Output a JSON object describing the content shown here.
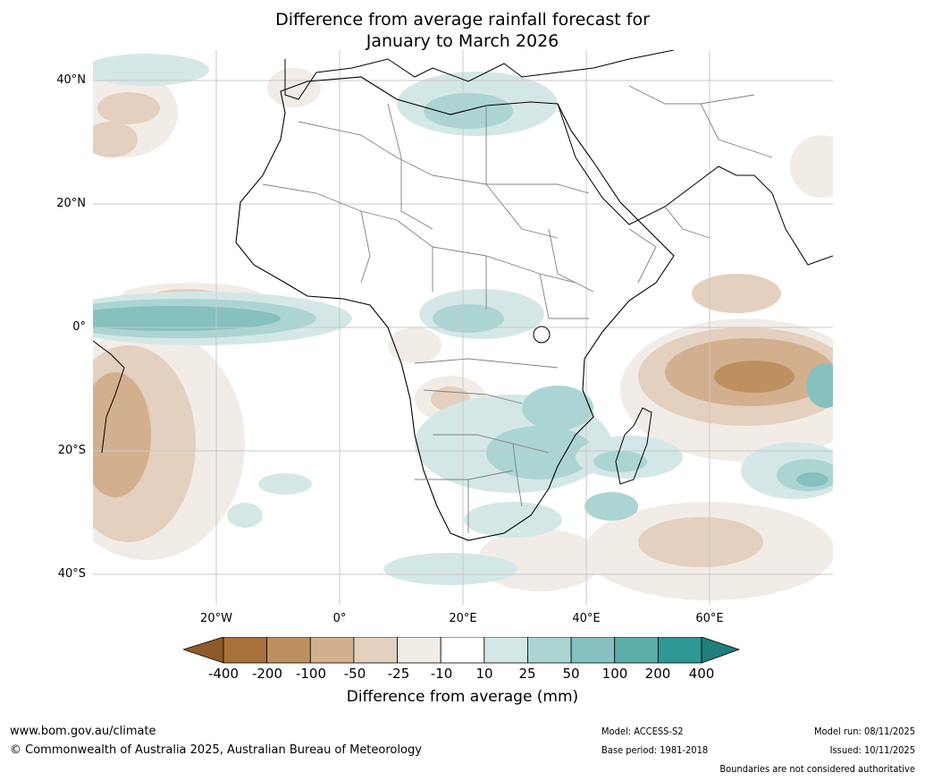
{
  "title": {
    "line1": "Difference from average rainfall forecast for",
    "line2": "January to March 2026"
  },
  "axes": {
    "y_labels": [
      "40°N",
      "20°N",
      "0°",
      "20°S",
      "40°S"
    ],
    "x_labels": [
      "20°W",
      "0°",
      "20°E",
      "40°E",
      "60°E"
    ]
  },
  "colorbar": {
    "tick_labels": [
      "-400",
      "-200",
      "-100",
      "-50",
      "-25",
      "-10",
      "10",
      "25",
      "50",
      "100",
      "200",
      "400"
    ],
    "colors": [
      "#a8703a",
      "#bd915f",
      "#d2b08e",
      "#e3d0bf",
      "#f2ece6",
      "#ffffff",
      "#d3e8e6",
      "#abd5d3",
      "#85c1bf",
      "#5caeab",
      "#2e9894"
    ],
    "low_extend_color": "#8f5a2a",
    "high_extend_color": "#1f7f7c",
    "label": "Difference from average (mm)"
  },
  "footer": {
    "website": "www.bom.gov.au/climate",
    "copyright": "© Commonwealth of Australia 2025, Australian Bureau of Meteorology",
    "model": "Model: ACCESS-S2",
    "base_period": "Base period: 1981-2018",
    "model_run": "Model run: 08/11/2025",
    "issued": "Issued: 10/11/2025",
    "boundaries_note": "Boundaries are not considered authoritative"
  }
}
